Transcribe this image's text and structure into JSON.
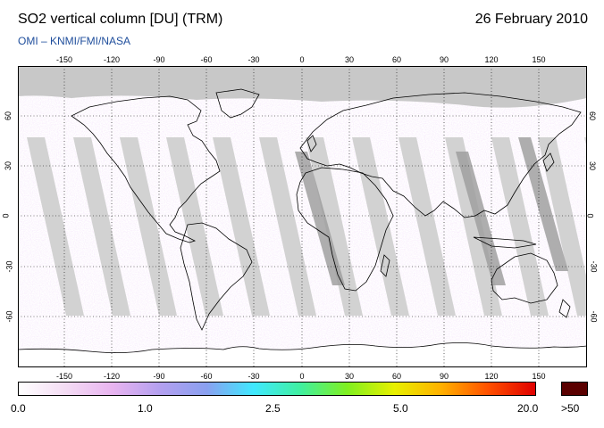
{
  "header": {
    "title": "SO2 vertical column [DU] (TRM)",
    "date": "26 February 2010",
    "subtitle": "OMI  –  KNMI/FMI/NASA"
  },
  "axes": {
    "longitude_ticks": [
      "-150",
      "-120",
      "-90",
      "-60",
      "-30",
      "0",
      "30",
      "60",
      "90",
      "120",
      "150"
    ],
    "latitude_ticks": [
      "60",
      "30",
      "0",
      "-30",
      "-60"
    ]
  },
  "colorbar": {
    "labels": [
      "0.0",
      "1.0",
      "2.5",
      "5.0",
      "20.0"
    ],
    "overflow_label": ">50",
    "colors": [
      "#ffffff",
      "#f4dcf4",
      "#e8b4f0",
      "#b4a0f0",
      "#8aa0f0",
      "#40e8ff",
      "#40f0a0",
      "#80f020",
      "#e8f000",
      "#ffb000",
      "#ff5000",
      "#e00000"
    ],
    "overflow_color": "#5a0000"
  },
  "map": {
    "land_outline_color": "#000000",
    "polar_night_color": "#c8c8c8",
    "data_gap_color": "#d2d2d2",
    "row_anomaly_color": "#a0a0a0"
  }
}
